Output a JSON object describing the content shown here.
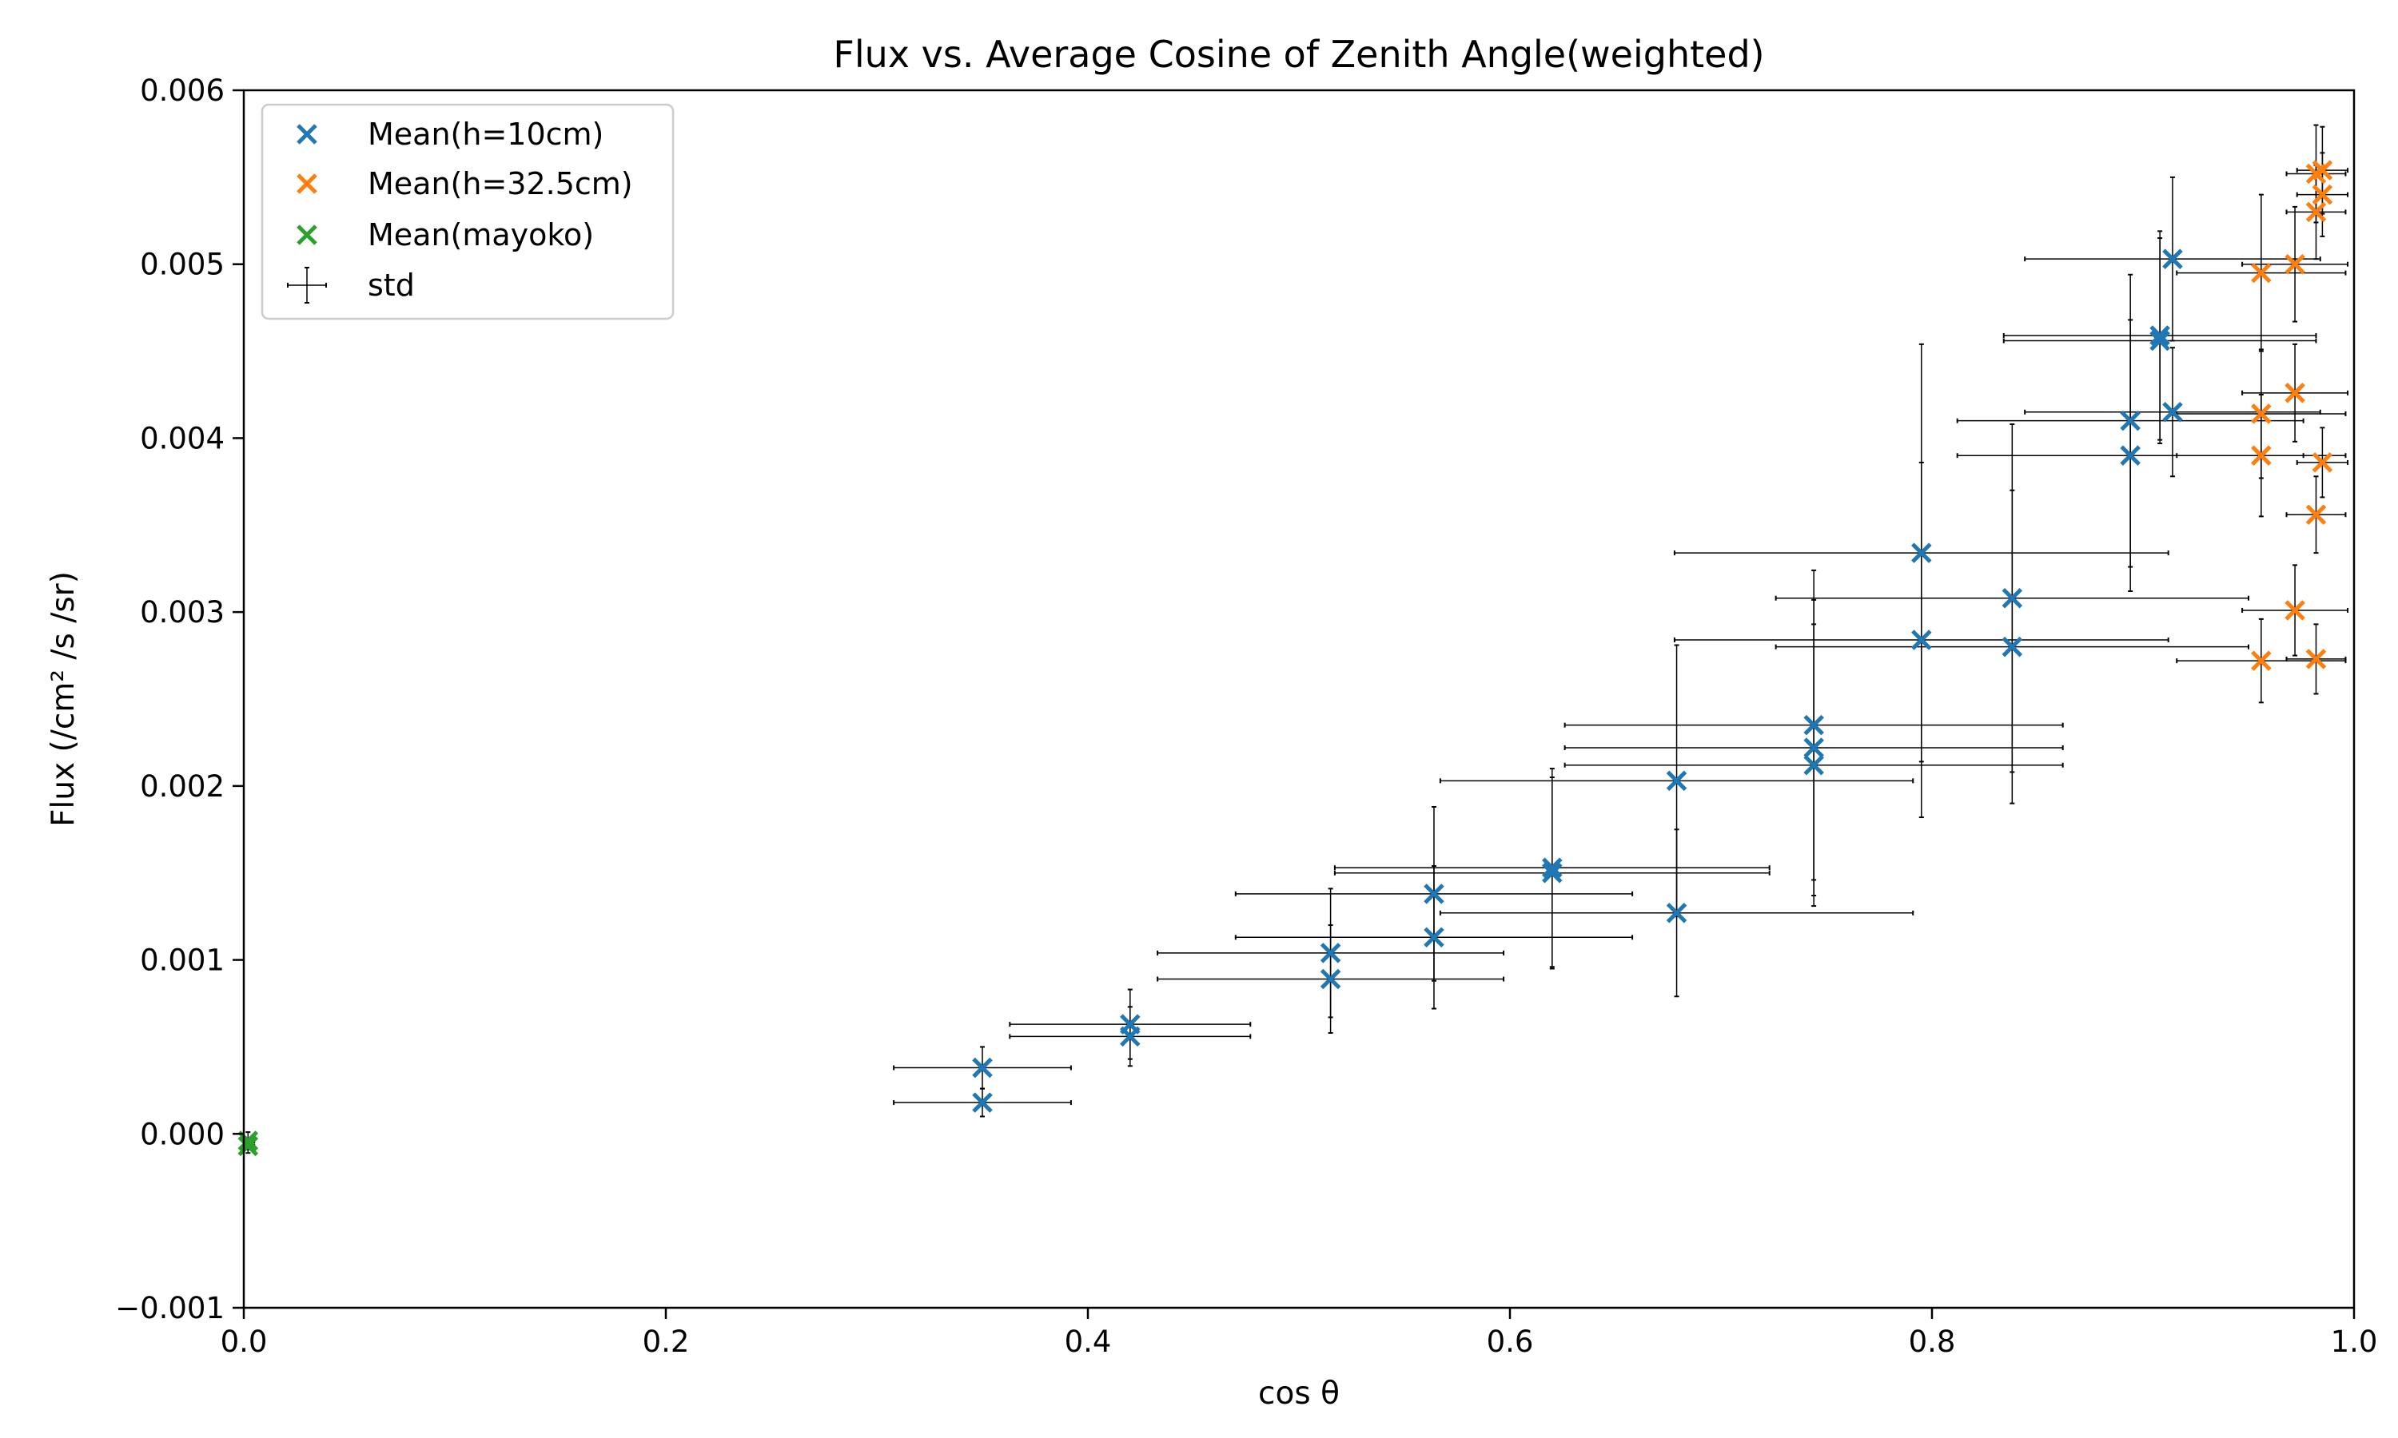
{
  "chart_data": {
    "type": "scatter",
    "title": "Flux vs. Average Cosine of Zenith Angle(weighted)",
    "xlabel": "cos θ",
    "ylabel": "Flux (/cm² /s /sr)",
    "xlim": [
      0.0,
      1.0
    ],
    "ylim": [
      -0.001,
      0.006
    ],
    "xticks": [
      "0.0",
      "0.2",
      "0.4",
      "0.6",
      "0.8",
      "1.0"
    ],
    "yticks": [
      "−0.001",
      "0.000",
      "0.001",
      "0.002",
      "0.003",
      "0.004",
      "0.005",
      "0.006"
    ],
    "grid": false,
    "legend_position": "upper-left",
    "legend": [
      "Mean(h=10cm)",
      "Mean(h=32.5cm)",
      "Mean(mayoko)",
      "std"
    ],
    "series": [
      {
        "name": "Mean(h=10cm)",
        "color": "#1f77b4",
        "marker": "x",
        "points": [
          {
            "x": 0.35,
            "y": 0.00038,
            "xerr": 0.042,
            "yerr": 0.00012
          },
          {
            "x": 0.35,
            "y": 0.00018,
            "xerr": 0.042,
            "yerr": 8e-05
          },
          {
            "x": 0.42,
            "y": 0.00063,
            "xerr": 0.057,
            "yerr": 0.0002
          },
          {
            "x": 0.42,
            "y": 0.00056,
            "xerr": 0.057,
            "yerr": 0.00017
          },
          {
            "x": 0.515,
            "y": 0.00104,
            "xerr": 0.082,
            "yerr": 0.00037
          },
          {
            "x": 0.515,
            "y": 0.00089,
            "xerr": 0.082,
            "yerr": 0.00031
          },
          {
            "x": 0.564,
            "y": 0.00138,
            "xerr": 0.094,
            "yerr": 0.0005
          },
          {
            "x": 0.564,
            "y": 0.00113,
            "xerr": 0.094,
            "yerr": 0.00041
          },
          {
            "x": 0.62,
            "y": 0.00153,
            "xerr": 0.103,
            "yerr": 0.00057
          },
          {
            "x": 0.62,
            "y": 0.0015,
            "xerr": 0.103,
            "yerr": 0.00055
          },
          {
            "x": 0.679,
            "y": 0.00203,
            "xerr": 0.112,
            "yerr": 0.00078
          },
          {
            "x": 0.679,
            "y": 0.00127,
            "xerr": 0.112,
            "yerr": 0.00048
          },
          {
            "x": 0.744,
            "y": 0.00235,
            "xerr": 0.118,
            "yerr": 0.00089
          },
          {
            "x": 0.744,
            "y": 0.00222,
            "xerr": 0.118,
            "yerr": 0.00085
          },
          {
            "x": 0.744,
            "y": 0.00212,
            "xerr": 0.118,
            "yerr": 0.00081
          },
          {
            "x": 0.795,
            "y": 0.00334,
            "xerr": 0.117,
            "yerr": 0.0012
          },
          {
            "x": 0.795,
            "y": 0.00284,
            "xerr": 0.117,
            "yerr": 0.00102
          },
          {
            "x": 0.838,
            "y": 0.00308,
            "xerr": 0.112,
            "yerr": 0.001
          },
          {
            "x": 0.838,
            "y": 0.0028,
            "xerr": 0.112,
            "yerr": 0.0009
          },
          {
            "x": 0.894,
            "y": 0.0041,
            "xerr": 0.082,
            "yerr": 0.00084
          },
          {
            "x": 0.894,
            "y": 0.0039,
            "xerr": 0.082,
            "yerr": 0.00078
          },
          {
            "x": 0.908,
            "y": 0.00459,
            "xerr": 0.074,
            "yerr": 0.0006
          },
          {
            "x": 0.908,
            "y": 0.00456,
            "xerr": 0.074,
            "yerr": 0.00059
          },
          {
            "x": 0.914,
            "y": 0.00503,
            "xerr": 0.07,
            "yerr": 0.00047
          },
          {
            "x": 0.914,
            "y": 0.00415,
            "xerr": 0.07,
            "yerr": 0.00037
          }
        ]
      },
      {
        "name": "Mean(h=32.5cm)",
        "color": "#ff7f0e",
        "marker": "x",
        "points": [
          {
            "x": 0.956,
            "y": 0.00495,
            "xerr": 0.04,
            "yerr": 0.00045
          },
          {
            "x": 0.956,
            "y": 0.00414,
            "xerr": 0.04,
            "yerr": 0.00037
          },
          {
            "x": 0.956,
            "y": 0.0039,
            "xerr": 0.04,
            "yerr": 0.00035
          },
          {
            "x": 0.956,
            "y": 0.00272,
            "xerr": 0.04,
            "yerr": 0.00024
          },
          {
            "x": 0.972,
            "y": 0.005,
            "xerr": 0.025,
            "yerr": 0.00033
          },
          {
            "x": 0.972,
            "y": 0.00426,
            "xerr": 0.025,
            "yerr": 0.00028
          },
          {
            "x": 0.972,
            "y": 0.00301,
            "xerr": 0.025,
            "yerr": 0.00026
          },
          {
            "x": 0.982,
            "y": 0.00552,
            "xerr": 0.014,
            "yerr": 0.00028
          },
          {
            "x": 0.982,
            "y": 0.0053,
            "xerr": 0.014,
            "yerr": 0.00027
          },
          {
            "x": 0.982,
            "y": 0.00356,
            "xerr": 0.014,
            "yerr": 0.00022
          },
          {
            "x": 0.982,
            "y": 0.00273,
            "xerr": 0.014,
            "yerr": 0.0002
          },
          {
            "x": 0.985,
            "y": 0.00554,
            "xerr": 0.012,
            "yerr": 0.00025
          },
          {
            "x": 0.985,
            "y": 0.0054,
            "xerr": 0.012,
            "yerr": 0.00024
          },
          {
            "x": 0.985,
            "y": 0.00386,
            "xerr": 0.012,
            "yerr": 0.0002
          }
        ]
      },
      {
        "name": "Mean(mayoko)",
        "color": "#2ca02c",
        "marker": "x",
        "points": [
          {
            "x": 0.002,
            "y": -4e-05,
            "xerr": 0.003,
            "yerr": 5e-05
          },
          {
            "x": 0.002,
            "y": -7e-05,
            "xerr": 0.003,
            "yerr": 4e-05
          }
        ]
      }
    ]
  }
}
